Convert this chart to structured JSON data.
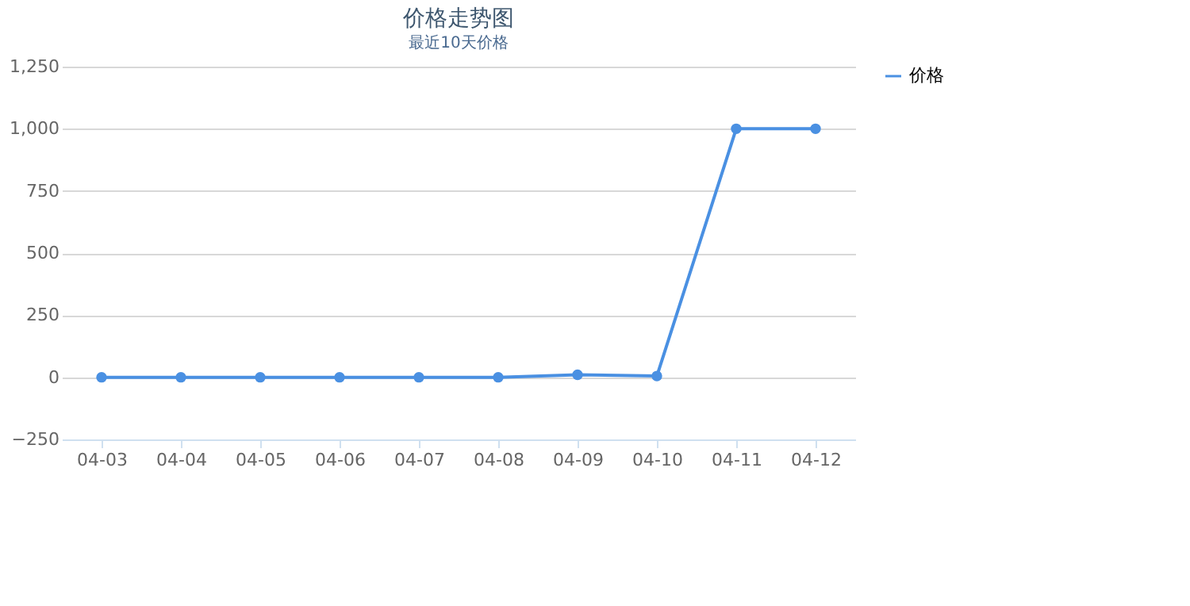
{
  "chart_data": {
    "type": "line",
    "title": "价格走势图",
    "subtitle": "最近10天价格",
    "categories": [
      "04-03",
      "04-04",
      "04-05",
      "04-06",
      "04-07",
      "04-08",
      "04-09",
      "04-10",
      "04-11",
      "04-12"
    ],
    "series": [
      {
        "name": "价格",
        "color": "#4a90e2",
        "values": [
          0,
          0,
          0,
          0,
          0,
          0,
          10,
          5,
          1000,
          1000
        ]
      }
    ],
    "ylim": [
      -250,
      1250
    ],
    "yticks": [
      {
        "value": -250,
        "label": "−250"
      },
      0,
      250,
      500,
      750,
      {
        "value": 1000,
        "label": "1,000"
      },
      {
        "value": 1250,
        "label": "1,250"
      }
    ],
    "grid": "y",
    "legend": "right",
    "marker": "circle",
    "line_style": "solid"
  }
}
